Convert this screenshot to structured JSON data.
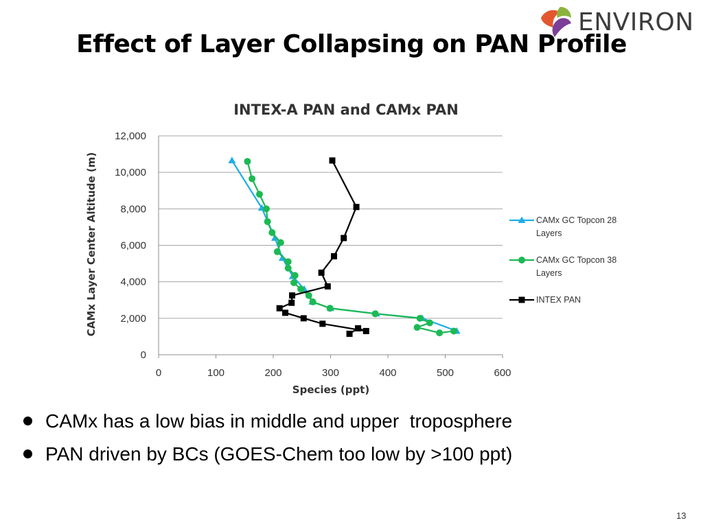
{
  "slide": {
    "title": "Effect of Layer Collapsing on PAN Profile",
    "logo_text": "ENVIRON",
    "bullets": [
      "CAMx has a low bias in middle and upper  troposphere",
      "PAN driven by BCs (GOES-Chem too low by >100 ppt)"
    ],
    "page_number": "13"
  },
  "colors": {
    "series_28": "#1faee6",
    "series_38": "#1db954",
    "series_intex": "#000000",
    "gridline": "#a6a6a6",
    "logo_orange": "#e4572e",
    "logo_green": "#8cb43c",
    "logo_purple": "#7b3f98"
  },
  "chart_data": {
    "type": "scatter",
    "title": "INTEX-A PAN and CAMx PAN",
    "xlabel": "Species (ppt)",
    "ylabel": "CAMx Layer Center Altitude (m)",
    "xlim": [
      0,
      600
    ],
    "ylim": [
      0,
      12000
    ],
    "x_ticks": [
      "0",
      "100",
      "200",
      "300",
      "400",
      "500",
      "600"
    ],
    "y_ticks": [
      "0",
      "2,000",
      "4,000",
      "6,000",
      "8,000",
      "10,000",
      "12,000"
    ],
    "grid": "horizontal",
    "legend_position": "right",
    "series": [
      {
        "name": "CAMx GC Topcon 28 Layers",
        "name_lines": [
          "CAMx GC Topcon 28",
          "Layers"
        ],
        "marker": "triangle",
        "color": "#1faee6",
        "points": [
          {
            "x": 128,
            "y": 10650
          },
          {
            "x": 180,
            "y": 8050
          },
          {
            "x": 203,
            "y": 6400
          },
          {
            "x": 216,
            "y": 5300
          },
          {
            "x": 234,
            "y": 4300
          },
          {
            "x": 254,
            "y": 3600
          },
          {
            "x": 268,
            "y": 2900
          },
          {
            "x": 300,
            "y": 2550
          },
          {
            "x": 380,
            "y": 2250
          },
          {
            "x": 460,
            "y": 2000
          },
          {
            "x": 520,
            "y": 1300
          }
        ]
      },
      {
        "name": "CAMx GC Topcon 38 Layers",
        "name_lines": [
          "CAMx GC Topcon 38",
          "Layers"
        ],
        "marker": "circle",
        "color": "#1db954",
        "points": [
          {
            "x": 155,
            "y": 10600
          },
          {
            "x": 163,
            "y": 9650
          },
          {
            "x": 176,
            "y": 8800
          },
          {
            "x": 188,
            "y": 8000
          },
          {
            "x": 190,
            "y": 7300
          },
          {
            "x": 198,
            "y": 6700
          },
          {
            "x": 213,
            "y": 6150
          },
          {
            "x": 207,
            "y": 5650
          },
          {
            "x": 226,
            "y": 5100
          },
          {
            "x": 226,
            "y": 4750
          },
          {
            "x": 238,
            "y": 4350
          },
          {
            "x": 236,
            "y": 3950
          },
          {
            "x": 248,
            "y": 3600
          },
          {
            "x": 262,
            "y": 3250
          },
          {
            "x": 269,
            "y": 2900
          },
          {
            "x": 299,
            "y": 2550
          },
          {
            "x": 378,
            "y": 2250
          },
          {
            "x": 456,
            "y": 2000
          },
          {
            "x": 473,
            "y": 1750
          },
          {
            "x": 451,
            "y": 1500
          },
          {
            "x": 490,
            "y": 1200
          },
          {
            "x": 515,
            "y": 1300
          }
        ]
      },
      {
        "name": "INTEX PAN",
        "name_lines": [
          "INTEX PAN"
        ],
        "marker": "square",
        "color": "#000000",
        "points": [
          {
            "x": 303,
            "y": 10650
          },
          {
            "x": 345,
            "y": 8100
          },
          {
            "x": 323,
            "y": 6400
          },
          {
            "x": 306,
            "y": 5400
          },
          {
            "x": 284,
            "y": 4500
          },
          {
            "x": 295,
            "y": 3750
          },
          {
            "x": 233,
            "y": 3250
          },
          {
            "x": 232,
            "y": 2850
          },
          {
            "x": 211,
            "y": 2550
          },
          {
            "x": 221,
            "y": 2300
          },
          {
            "x": 253,
            "y": 2000
          },
          {
            "x": 286,
            "y": 1700
          },
          {
            "x": 362,
            "y": 1300
          },
          {
            "x": 348,
            "y": 1450
          },
          {
            "x": 333,
            "y": 1150
          }
        ]
      }
    ]
  }
}
